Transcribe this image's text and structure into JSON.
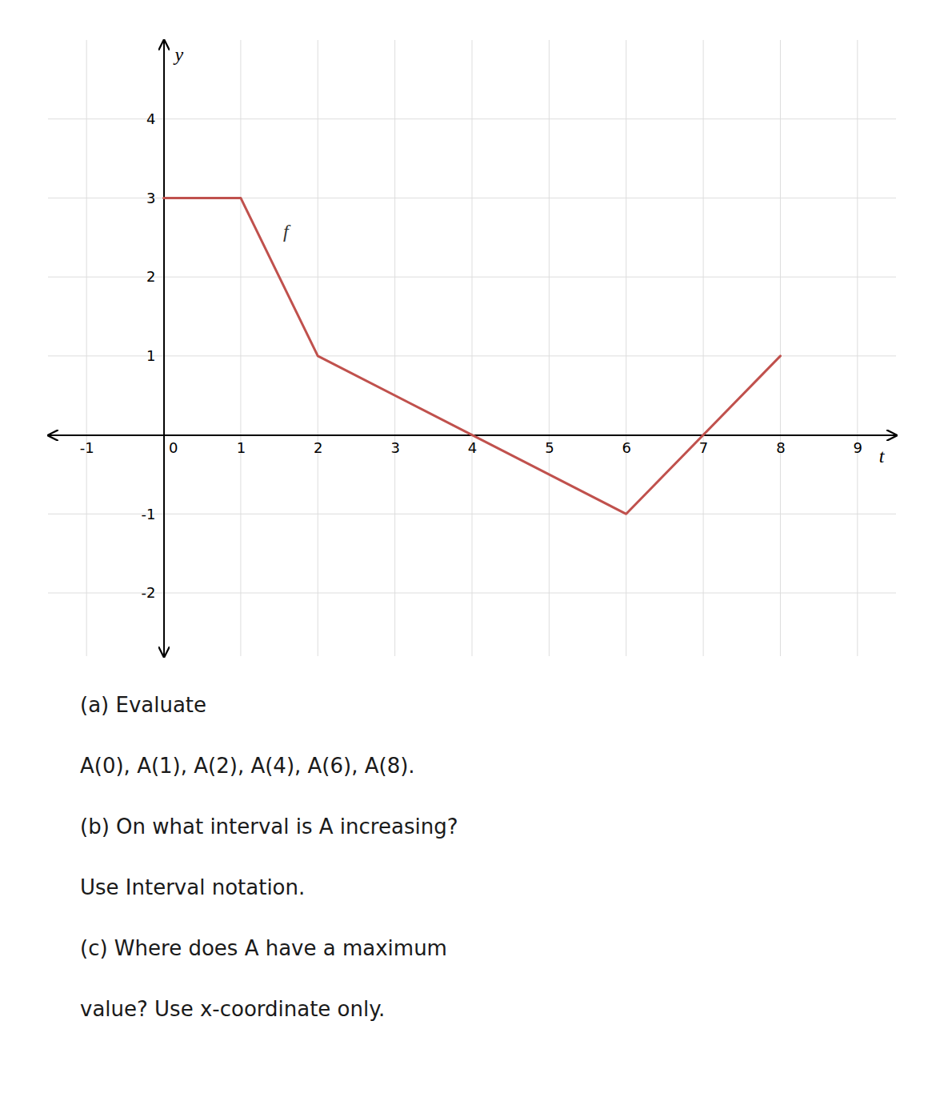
{
  "chart_data": {
    "type": "line",
    "x": [
      0,
      1,
      2,
      6,
      8
    ],
    "values": [
      3,
      3,
      1,
      -1,
      1
    ],
    "color": "#c0514d",
    "xlim": [
      -1.5,
      9.5
    ],
    "ylim": [
      -2.8,
      5.0
    ],
    "xticks": [
      -1,
      0,
      1,
      2,
      3,
      4,
      5,
      6,
      7,
      8,
      9
    ],
    "yticks": [
      -2,
      -1,
      1,
      2,
      3,
      4
    ],
    "grid": true,
    "x_label": "t",
    "y_label": "y",
    "annotations": [
      {
        "text": "f",
        "x": 1.55,
        "y": 2.5
      }
    ],
    "text_lines": [
      "(a) Evaluate",
      "A(0), A(1), A(2), A(4), A(6), A(8).",
      "(b) On what interval is A increasing?",
      "Use Interval notation.",
      "(c) Where does A have a maximum",
      "value? Use x-coordinate only."
    ]
  }
}
